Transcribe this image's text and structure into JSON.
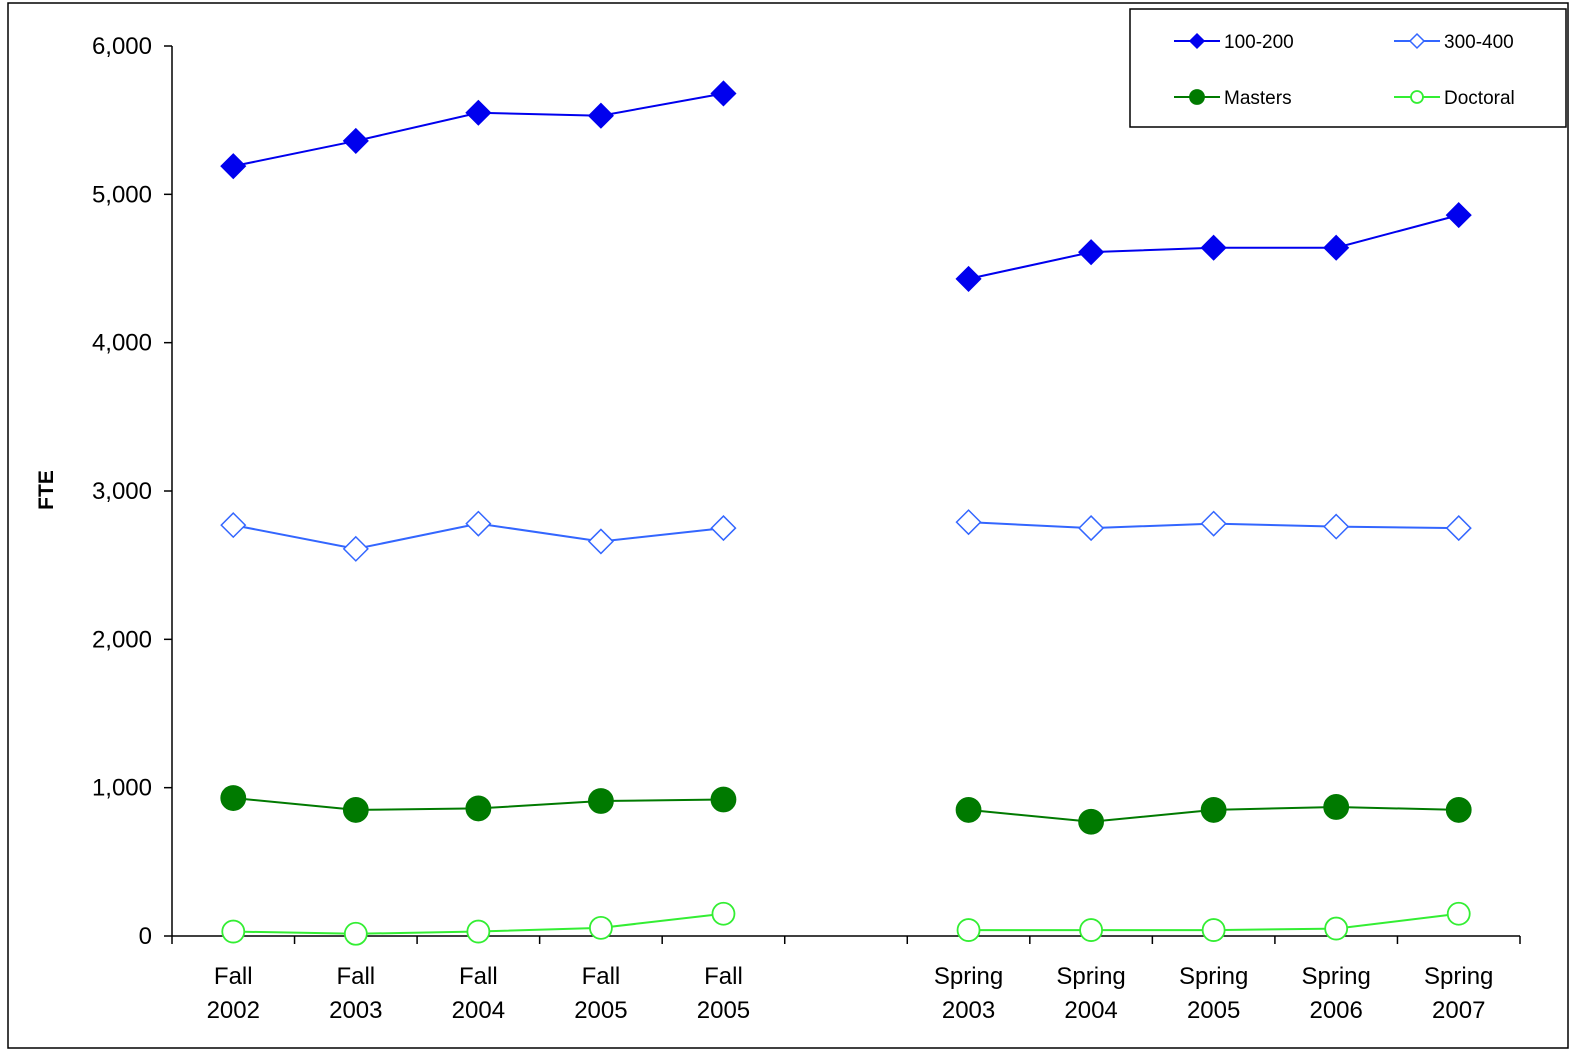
{
  "chart_data": {
    "type": "line",
    "title": "",
    "xlabel": "",
    "ylabel": "FTE",
    "ylim": [
      0,
      6000
    ],
    "yticks": [
      "6,000",
      "5,000",
      "4,000",
      "3,000",
      "2,000",
      "1,000",
      "0"
    ],
    "ytick_values": [
      6000,
      5000,
      4000,
      3000,
      2000,
      1000,
      0
    ],
    "categories": [
      {
        "line1": "Fall",
        "line2": "2002"
      },
      {
        "line1": "Fall",
        "line2": "2003"
      },
      {
        "line1": "Fall",
        "line2": "2004"
      },
      {
        "line1": "Fall",
        "line2": "2005"
      },
      {
        "line1": "Fall",
        "line2": "2005"
      },
      {
        "line1": "",
        "line2": ""
      },
      {
        "line1": "Spring",
        "line2": "2003"
      },
      {
        "line1": "Spring",
        "line2": "2004"
      },
      {
        "line1": "Spring",
        "line2": "2005"
      },
      {
        "line1": "Spring",
        "line2": "2006"
      },
      {
        "line1": "Spring",
        "line2": "2007"
      }
    ],
    "grid": false,
    "legend_position": "top-right",
    "series": [
      {
        "name": "100-200",
        "color": "#0000ee",
        "marker": "diamond-filled",
        "values": [
          5190,
          5360,
          5550,
          5530,
          5680,
          null,
          4430,
          4610,
          4640,
          4640,
          4860
        ]
      },
      {
        "name": "300-400",
        "color": "#3366ff",
        "marker": "diamond-open",
        "values": [
          2770,
          2610,
          2780,
          2660,
          2750,
          null,
          2790,
          2750,
          2780,
          2760,
          2750
        ]
      },
      {
        "name": "Masters",
        "color": "#007a00",
        "marker": "circle-filled",
        "values": [
          930,
          850,
          860,
          910,
          920,
          null,
          850,
          770,
          850,
          870,
          850
        ]
      },
      {
        "name": "Doctoral",
        "color": "#33ee33",
        "marker": "circle-open",
        "values": [
          30,
          15,
          30,
          55,
          150,
          null,
          40,
          40,
          40,
          50,
          150
        ]
      }
    ]
  }
}
